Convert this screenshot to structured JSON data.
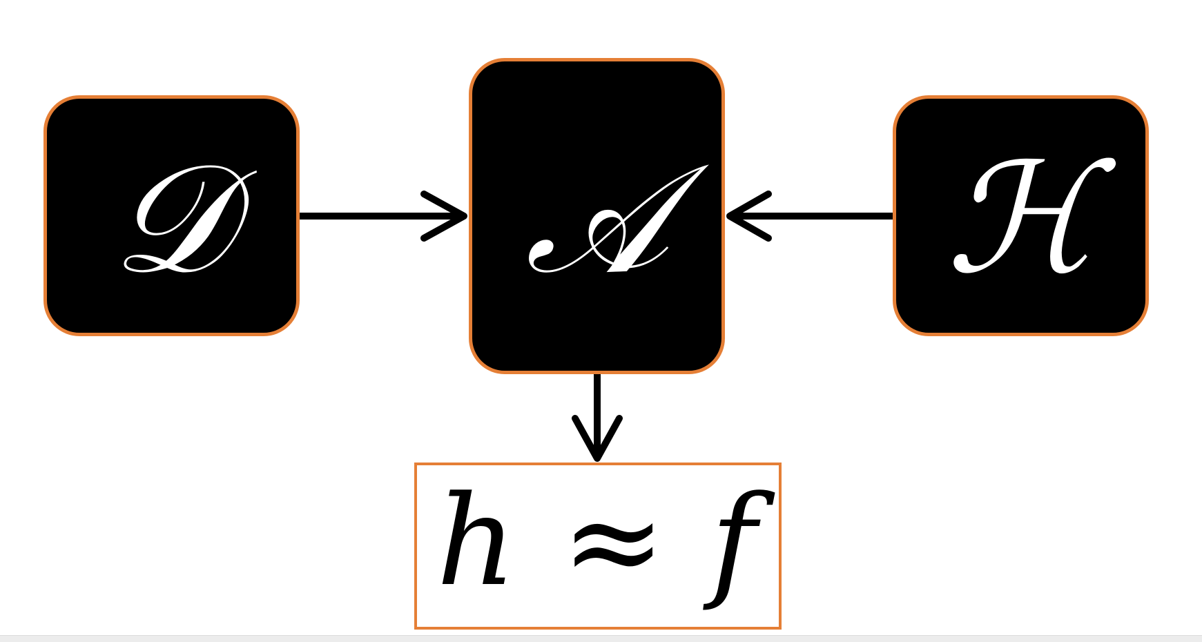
{
  "diagram": {
    "nodes": {
      "data": {
        "symbol": "𝒟"
      },
      "algorithm": {
        "symbol": "𝒜"
      },
      "hypothesis": {
        "symbol": "ℋ"
      }
    },
    "output": {
      "expression": "h ≈ f"
    },
    "colors": {
      "node_fill": "#000000",
      "node_border": "#e57f36",
      "node_text": "#ffffff",
      "output_border": "#e57f36",
      "arrow": "#000000"
    }
  }
}
